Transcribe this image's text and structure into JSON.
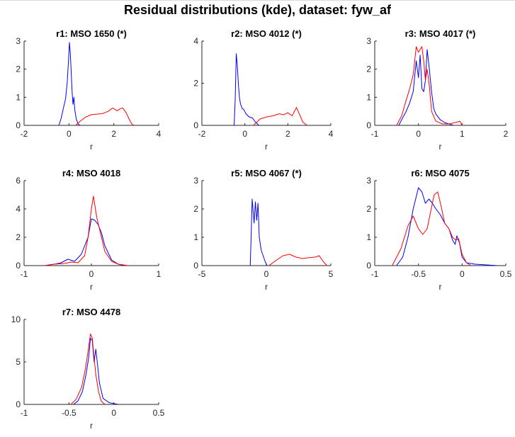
{
  "figure": {
    "title": "Residual distributions (kde), dataset: fyw_af"
  },
  "chart_data": [
    {
      "type": "line",
      "title": "r1: MSO 1650 (*)",
      "xlabel": "r",
      "ylabel": "",
      "xlim": [
        -2,
        4
      ],
      "ylim": [
        0,
        3
      ],
      "xticks": [
        -2,
        0,
        2,
        4
      ],
      "yticks": [
        0,
        1,
        2,
        3
      ],
      "series": [
        {
          "color": "#0000ff",
          "x": [
            -0.45,
            -0.35,
            -0.25,
            -0.15,
            -0.08,
            -0.02,
            0.02,
            0.06,
            0.1,
            0.14,
            0.18,
            0.22,
            0.26,
            0.32,
            0.4,
            0.5
          ],
          "y": [
            0,
            0.25,
            0.6,
            0.95,
            1.5,
            2.3,
            2.95,
            2.6,
            1.9,
            1.2,
            0.75,
            1.0,
            0.55,
            0.25,
            0.05,
            0
          ]
        },
        {
          "color": "#ff0000",
          "x": [
            0.3,
            0.5,
            0.75,
            1.0,
            1.25,
            1.5,
            1.75,
            1.95,
            2.15,
            2.3,
            2.4,
            2.55,
            2.7,
            2.8,
            2.9
          ],
          "y": [
            0,
            0.15,
            0.3,
            0.38,
            0.4,
            0.42,
            0.5,
            0.62,
            0.52,
            0.6,
            0.62,
            0.45,
            0.2,
            0.05,
            0
          ]
        }
      ]
    },
    {
      "type": "line",
      "title": "r2: MSO 4012 (*)",
      "xlabel": "r",
      "ylabel": "",
      "xlim": [
        -2,
        4
      ],
      "ylim": [
        0,
        4
      ],
      "xticks": [
        -2,
        0,
        2,
        4
      ],
      "yticks": [
        0,
        2,
        4
      ],
      "series": [
        {
          "color": "#0000ff",
          "x": [
            -0.5,
            -0.45,
            -0.4,
            -0.35,
            -0.3,
            -0.25,
            -0.2,
            -0.12,
            -0.05,
            0.05,
            0.2,
            0.35,
            0.5,
            0.65
          ],
          "y": [
            0,
            1.2,
            3.4,
            2.8,
            1.9,
            1.3,
            1.0,
            0.8,
            0.75,
            0.55,
            0.4,
            0.35,
            0.15,
            0
          ]
        },
        {
          "color": "#ff0000",
          "x": [
            0.4,
            0.7,
            1.0,
            1.3,
            1.6,
            1.8,
            2.0,
            2.2,
            2.4,
            2.55,
            2.7,
            2.9
          ],
          "y": [
            0,
            0.3,
            0.4,
            0.45,
            0.55,
            0.5,
            0.6,
            0.45,
            0.85,
            0.5,
            0.15,
            0
          ]
        }
      ]
    },
    {
      "type": "line",
      "title": "r3: MSO 4017 (*)",
      "xlabel": "r",
      "ylabel": "",
      "xlim": [
        -1,
        2
      ],
      "ylim": [
        0,
        3
      ],
      "xticks": [
        -1,
        0,
        1,
        2
      ],
      "yticks": [
        0,
        1,
        2,
        3
      ],
      "series": [
        {
          "color": "#0000ff",
          "x": [
            -0.45,
            -0.35,
            -0.28,
            -0.2,
            -0.12,
            -0.05,
            0.0,
            0.04,
            0.08,
            0.12,
            0.16,
            0.2,
            0.25,
            0.3,
            0.35,
            0.4,
            0.5,
            0.6,
            0.7,
            0.8
          ],
          "y": [
            0,
            0.3,
            0.5,
            0.8,
            1.2,
            2.3,
            1.7,
            2.5,
            1.3,
            1.2,
            1.6,
            2.7,
            2.0,
            1.2,
            0.6,
            0.4,
            0.2,
            0.1,
            0.05,
            0
          ]
        },
        {
          "color": "#ff0000",
          "x": [
            -0.5,
            -0.38,
            -0.3,
            -0.2,
            -0.12,
            -0.05,
            0.0,
            0.04,
            0.08,
            0.12,
            0.16,
            0.2,
            0.25,
            0.3,
            0.4,
            0.55,
            0.7,
            0.85,
            0.95,
            1.0
          ],
          "y": [
            0,
            0.35,
            0.8,
            1.3,
            1.8,
            2.8,
            2.6,
            2.7,
            2.8,
            2.3,
            1.6,
            2.0,
            1.4,
            0.5,
            0.15,
            0.05,
            0.05,
            0.1,
            0.15,
            0
          ]
        }
      ]
    },
    {
      "type": "line",
      "title": "r4: MSO 4018",
      "xlabel": "r",
      "ylabel": "",
      "xlim": [
        -1,
        1
      ],
      "ylim": [
        0,
        6
      ],
      "xticks": [
        -1,
        0,
        1
      ],
      "yticks": [
        0,
        2,
        4,
        6
      ],
      "series": [
        {
          "color": "#0000ff",
          "x": [
            -0.7,
            -0.55,
            -0.45,
            -0.35,
            -0.25,
            -0.15,
            -0.05,
            0.0,
            0.05,
            0.1,
            0.15,
            0.2,
            0.3,
            0.4,
            0.5
          ],
          "y": [
            0,
            0.1,
            0.2,
            0.45,
            0.3,
            0.8,
            2.0,
            3.3,
            3.2,
            2.9,
            2.3,
            1.4,
            0.4,
            0.1,
            0
          ]
        },
        {
          "color": "#ff0000",
          "x": [
            -0.7,
            -0.55,
            -0.4,
            -0.3,
            -0.2,
            -0.1,
            -0.05,
            0.0,
            0.03,
            0.08,
            0.14,
            0.2,
            0.3,
            0.4,
            0.55
          ],
          "y": [
            0,
            0.1,
            0.15,
            0.25,
            0.2,
            0.7,
            2.0,
            4.0,
            4.9,
            3.4,
            2.2,
            1.0,
            0.3,
            0.1,
            0
          ]
        }
      ]
    },
    {
      "type": "line",
      "title": "r5: MSO 4067 (*)",
      "xlabel": "r",
      "ylabel": "",
      "xlim": [
        -5,
        5
      ],
      "ylim": [
        0,
        3
      ],
      "xticks": [
        -5,
        0,
        5
      ],
      "yticks": [
        0,
        1,
        2,
        3
      ],
      "series": [
        {
          "color": "#0000ff",
          "x": [
            -1.25,
            -1.1,
            -0.95,
            -0.85,
            -0.75,
            -0.65,
            -0.55,
            -0.4,
            -0.25,
            -0.1,
            0.05
          ],
          "y": [
            0,
            2.35,
            1.5,
            2.25,
            1.6,
            2.2,
            1.0,
            0.55,
            0.35,
            0.15,
            0
          ]
        },
        {
          "color": "#ff0000",
          "x": [
            0.2,
            0.8,
            1.3,
            1.8,
            2.3,
            2.8,
            3.3,
            3.8,
            4.1,
            4.4,
            4.7
          ],
          "y": [
            0,
            0.2,
            0.35,
            0.4,
            0.3,
            0.25,
            0.28,
            0.3,
            0.35,
            0.15,
            0
          ]
        }
      ]
    },
    {
      "type": "line",
      "title": "r6: MSO 4075",
      "xlabel": "r",
      "ylabel": "",
      "xlim": [
        -1,
        0.5
      ],
      "ylim": [
        0,
        3
      ],
      "xticks": [
        -1,
        -0.5,
        0,
        0.5
      ],
      "yticks": [
        0,
        1,
        2,
        3
      ],
      "series": [
        {
          "color": "#0000ff",
          "x": [
            -0.75,
            -0.68,
            -0.62,
            -0.56,
            -0.5,
            -0.46,
            -0.42,
            -0.38,
            -0.34,
            -0.3,
            -0.25,
            -0.2,
            -0.15,
            -0.11,
            -0.08,
            -0.06,
            -0.03,
            0.0,
            0.05,
            0.15,
            0.4
          ],
          "y": [
            0,
            0.3,
            1.0,
            2.0,
            2.75,
            2.6,
            2.2,
            2.35,
            2.2,
            2.0,
            1.8,
            1.5,
            1.3,
            0.9,
            0.75,
            1.05,
            0.8,
            0.3,
            0.1,
            0.05,
            0
          ]
        },
        {
          "color": "#ff0000",
          "x": [
            -0.8,
            -0.7,
            -0.62,
            -0.56,
            -0.5,
            -0.45,
            -0.4,
            -0.36,
            -0.32,
            -0.28,
            -0.24,
            -0.2,
            -0.15,
            -0.11,
            -0.07,
            -0.04,
            0.0,
            0.05,
            0.1
          ],
          "y": [
            0,
            0.6,
            1.4,
            1.75,
            1.3,
            1.1,
            1.3,
            1.9,
            2.5,
            2.6,
            2.1,
            1.5,
            1.3,
            1.0,
            0.9,
            0.95,
            0.4,
            0.1,
            0
          ]
        }
      ]
    },
    {
      "type": "line",
      "title": "r7: MSO 4478",
      "xlabel": "r",
      "ylabel": "",
      "xlim": [
        -1,
        0.5
      ],
      "ylim": [
        0,
        10
      ],
      "xticks": [
        -1,
        -0.5,
        0,
        0.5
      ],
      "yticks": [
        0,
        5,
        10
      ],
      "series": [
        {
          "color": "#0000ff",
          "x": [
            -0.45,
            -0.4,
            -0.35,
            -0.31,
            -0.28,
            -0.26,
            -0.24,
            -0.22,
            -0.2,
            -0.18,
            -0.16,
            -0.12,
            -0.05,
            0.05
          ],
          "y": [
            0,
            0.4,
            1.5,
            3.5,
            5.5,
            7.8,
            7.5,
            5.0,
            6.5,
            4.5,
            2.5,
            0.7,
            0.2,
            0
          ]
        },
        {
          "color": "#ff0000",
          "x": [
            -0.48,
            -0.42,
            -0.36,
            -0.32,
            -0.29,
            -0.26,
            -0.24,
            -0.22,
            -0.2,
            -0.17,
            -0.14,
            -0.1
          ],
          "y": [
            0,
            0.6,
            2.0,
            4.0,
            6.0,
            8.3,
            7.8,
            5.5,
            3.5,
            1.5,
            0.4,
            0
          ]
        }
      ]
    }
  ]
}
